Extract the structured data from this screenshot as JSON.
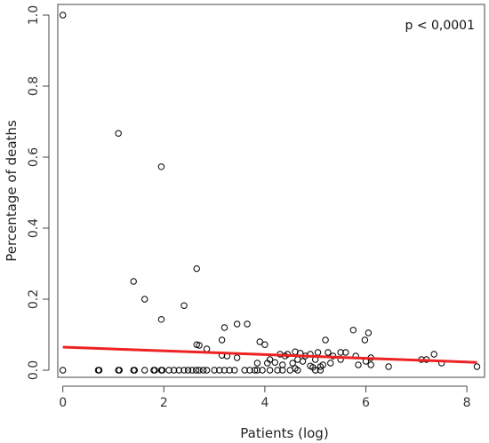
{
  "chart_data": {
    "type": "scatter",
    "title": "",
    "xlabel": "Patients (log)",
    "ylabel": "Percentage of deaths",
    "annotation": "p < 0,0001",
    "xlim": [
      -0.1,
      8.35
    ],
    "ylim": [
      -0.02,
      1.03
    ],
    "x_ticks": [
      0,
      2,
      4,
      6,
      8
    ],
    "y_ticks": [
      0.0,
      0.2,
      0.4,
      0.6,
      0.8,
      1.0
    ],
    "x_tick_labels": [
      "0",
      "2",
      "4",
      "6",
      "8"
    ],
    "y_tick_labels": [
      "0.0",
      "0.2",
      "0.4",
      "0.6",
      "0.8",
      "1.0"
    ],
    "grid": false,
    "legend": "none",
    "marker_color": "#000000",
    "fit_line": {
      "color": "#ee2222",
      "x": [
        0,
        8.2
      ],
      "y": [
        0.065,
        0.022
      ]
    },
    "points": [
      [
        0,
        1.0
      ],
      [
        1.1,
        0.667
      ],
      [
        1.95,
        0.573
      ],
      [
        1.4,
        0.25
      ],
      [
        1.62,
        0.2
      ],
      [
        2.65,
        0.286
      ],
      [
        2.4,
        0.182
      ],
      [
        1.95,
        0.143
      ],
      [
        3.2,
        0.12
      ],
      [
        3.45,
        0.13
      ],
      [
        3.65,
        0.13
      ],
      [
        3.15,
        0.085
      ],
      [
        5.75,
        0.113
      ],
      [
        6.05,
        0.105
      ],
      [
        5.98,
        0.085
      ],
      [
        5.2,
        0.085
      ],
      [
        2.65,
        0.072
      ],
      [
        2.7,
        0.07
      ],
      [
        2.85,
        0.06
      ],
      [
        3.9,
        0.08
      ],
      [
        4.0,
        0.072
      ],
      [
        4.6,
        0.052
      ],
      [
        4.7,
        0.048
      ],
      [
        4.45,
        0.045
      ],
      [
        4.9,
        0.045
      ],
      [
        5.05,
        0.05
      ],
      [
        5.25,
        0.05
      ],
      [
        5.5,
        0.05
      ],
      [
        5.6,
        0.05
      ],
      [
        3.15,
        0.042
      ],
      [
        3.25,
        0.04
      ],
      [
        3.45,
        0.035
      ],
      [
        4.3,
        0.045
      ],
      [
        4.4,
        0.04
      ],
      [
        4.8,
        0.04
      ],
      [
        5.35,
        0.04
      ],
      [
        5.8,
        0.04
      ],
      [
        6.1,
        0.035
      ],
      [
        4.1,
        0.03
      ],
      [
        4.65,
        0.03
      ],
      [
        5.0,
        0.03
      ],
      [
        5.5,
        0.03
      ],
      [
        6.0,
        0.025
      ],
      [
        7.1,
        0.03
      ],
      [
        7.2,
        0.03
      ],
      [
        7.35,
        0.045
      ],
      [
        6.1,
        0.015
      ],
      [
        7.5,
        0.02
      ],
      [
        3.85,
        0.02
      ],
      [
        4.05,
        0.02
      ],
      [
        4.2,
        0.022
      ],
      [
        4.35,
        0.015
      ],
      [
        4.55,
        0.02
      ],
      [
        4.75,
        0.025
      ],
      [
        4.9,
        0.012
      ],
      [
        5.15,
        0.015
      ],
      [
        5.3,
        0.02
      ],
      [
        5.85,
        0.015
      ],
      [
        6.45,
        0.01
      ],
      [
        8.2,
        0.01
      ],
      [
        4.6,
        0.005
      ],
      [
        4.95,
        0.008
      ],
      [
        5.1,
        0.01
      ],
      [
        0,
        0
      ],
      [
        0.7,
        0
      ],
      [
        0.72,
        0
      ],
      [
        1.1,
        0
      ],
      [
        1.12,
        0
      ],
      [
        1.4,
        0
      ],
      [
        1.42,
        0
      ],
      [
        1.62,
        0
      ],
      [
        1.8,
        0
      ],
      [
        1.82,
        0
      ],
      [
        1.95,
        0
      ],
      [
        1.97,
        0
      ],
      [
        2.1,
        0
      ],
      [
        2.2,
        0
      ],
      [
        2.3,
        0
      ],
      [
        2.4,
        0
      ],
      [
        2.48,
        0
      ],
      [
        2.56,
        0
      ],
      [
        2.64,
        0
      ],
      [
        2.7,
        0
      ],
      [
        2.78,
        0
      ],
      [
        2.85,
        0
      ],
      [
        3.0,
        0
      ],
      [
        3.1,
        0
      ],
      [
        3.2,
        0
      ],
      [
        3.3,
        0
      ],
      [
        3.4,
        0
      ],
      [
        3.6,
        0
      ],
      [
        3.7,
        0
      ],
      [
        3.8,
        0
      ],
      [
        3.85,
        0
      ],
      [
        3.95,
        0
      ],
      [
        4.1,
        0
      ],
      [
        4.25,
        0
      ],
      [
        4.35,
        0
      ],
      [
        4.5,
        0
      ],
      [
        4.65,
        0
      ],
      [
        5.0,
        0
      ],
      [
        5.1,
        0
      ]
    ]
  }
}
